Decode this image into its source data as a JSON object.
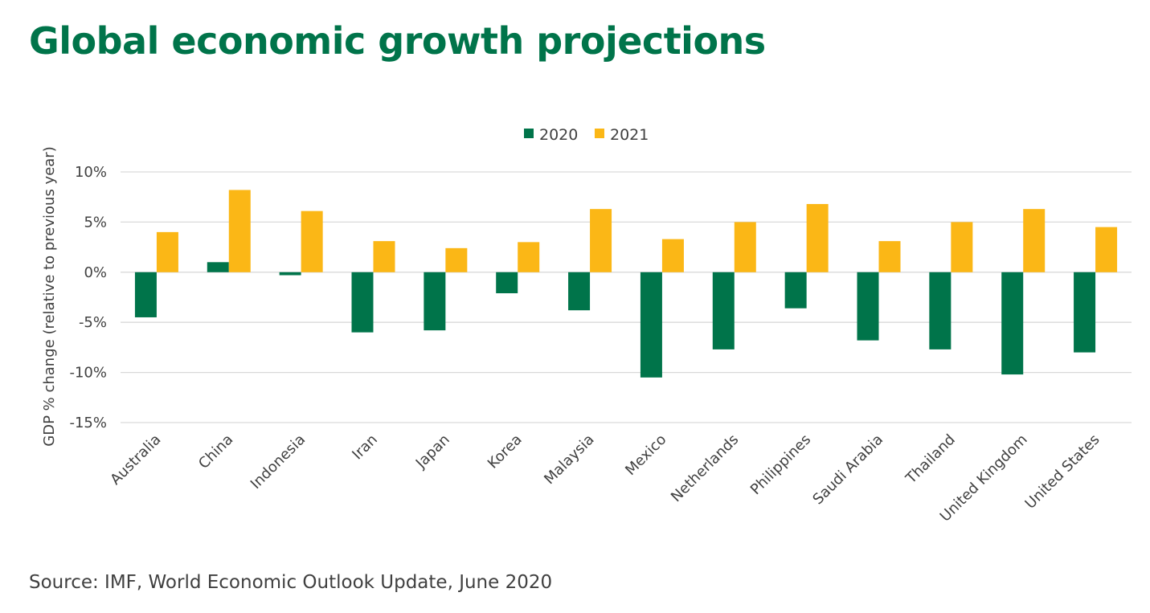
{
  "title": "Global economic growth projections",
  "source": "Source: IMF, World Economic Outlook Update, June 2020",
  "colors": {
    "title": "#00744A",
    "series_2020": "#00744A",
    "series_2021": "#FBB716",
    "grid": "#D9D9D9",
    "text": "#404040"
  },
  "chart_data": {
    "type": "bar",
    "ylabel": "GDP % change (relative to previous year)",
    "xlabel": "",
    "ylim": [
      -15,
      10
    ],
    "yticks": [
      10,
      5,
      0,
      -5,
      -10,
      -15
    ],
    "ytick_labels": [
      "10%",
      "5%",
      "0%",
      "-5%",
      "-10%",
      "-15%"
    ],
    "grid": true,
    "legend_position": "top-center",
    "categories": [
      "Australia",
      "China",
      "Indonesia",
      "Iran",
      "Japan",
      "Korea",
      "Malaysia",
      "Mexico",
      "Netherlands",
      "Philippines",
      "Saudi Arabia",
      "Thailand",
      "United Kingdom",
      "United States"
    ],
    "series": [
      {
        "name": "2020",
        "values": [
          -4.5,
          1.0,
          -0.3,
          -6.0,
          -5.8,
          -2.1,
          -3.8,
          -10.5,
          -7.7,
          -3.6,
          -6.8,
          -7.7,
          -10.2,
          -8.0
        ]
      },
      {
        "name": "2021",
        "values": [
          4.0,
          8.2,
          6.1,
          3.1,
          2.4,
          3.0,
          6.3,
          3.3,
          5.0,
          6.8,
          3.1,
          5.0,
          6.3,
          4.5
        ]
      }
    ]
  }
}
